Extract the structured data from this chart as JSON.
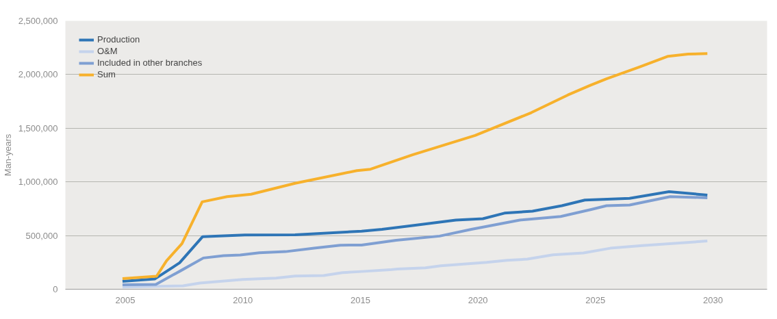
{
  "chart_data": {
    "type": "line",
    "ylabel": "Man-years",
    "xlim": [
      2002.45,
      2032.3
    ],
    "ylim": [
      0,
      2500000
    ],
    "xticks": [
      2005,
      2010,
      2015,
      2020,
      2025,
      2030
    ],
    "yticks": [
      {
        "value": 0,
        "label": "0"
      },
      {
        "value": 500000,
        "label": "500,000"
      },
      {
        "value": 1000000,
        "label": "1,000,000"
      },
      {
        "value": 1500000,
        "label": "1,500,000"
      },
      {
        "value": 2000000,
        "label": "2,000,000"
      },
      {
        "value": 2500000,
        "label": "2,500,000"
      }
    ],
    "grid": "y",
    "legend": "top left",
    "marker": "none",
    "line_style": "solid",
    "series": [
      {
        "name": "Production",
        "color": "#2e75b6",
        "x": [
          2004.88,
          2006.25,
          2007.31,
          2008.29,
          2010.09,
          2012.22,
          2015.05,
          2015.92,
          2017.22,
          2019.06,
          2020.21,
          2021.13,
          2022.32,
          2023.57,
          2024.55,
          2026.45,
          2028.13,
          2029.76
        ],
        "values": [
          73000,
          95000,
          246000,
          490000,
          505000,
          507000,
          541000,
          558000,
          593000,
          644000,
          657000,
          709000,
          727000,
          778000,
          831000,
          847000,
          909000,
          877000
        ]
      },
      {
        "name": "O&M",
        "color": "#c5d3ec",
        "x": [
          2004.88,
          2007.46,
          2008.17,
          2009.99,
          2011.41,
          2012.22,
          2013.44,
          2014.24,
          2015.05,
          2016.25,
          2016.57,
          2017.77,
          2018.42,
          2020.37,
          2021.24,
          2022.1,
          2023.19,
          2024.49,
          2025.63,
          2026.99,
          2029.76
        ],
        "values": [
          21000,
          32000,
          58000,
          91000,
          104000,
          123000,
          128000,
          155000,
          165000,
          181000,
          188000,
          199000,
          218000,
          250000,
          269000,
          280000,
          320000,
          338000,
          382000,
          407000,
          449000
        ]
      },
      {
        "name": "Included in other branches",
        "color": "#7f9fd2",
        "x": [
          2004.88,
          2006.3,
          2007.36,
          2008.32,
          2009.18,
          2009.89,
          2010.7,
          2011.81,
          2013.03,
          2014.14,
          2015.05,
          2016.52,
          2018.37,
          2019.72,
          2021.78,
          2023.52,
          2024.82,
          2025.47,
          2026.45,
          2028.18,
          2029.76
        ],
        "values": [
          41000,
          45000,
          173000,
          291000,
          313000,
          319000,
          339000,
          350000,
          382000,
          410000,
          412000,
          456000,
          495000,
          558000,
          644000,
          678000,
          743000,
          778000,
          784000,
          863000,
          852000
        ]
      },
      {
        "name": "Sum",
        "color": "#f7b12c",
        "x": [
          2004.88,
          2006.33,
          2006.75,
          2007.41,
          2008.27,
          2009.33,
          2010.35,
          2012.22,
          2014.85,
          2015.43,
          2017.22,
          2019.88,
          2022.27,
          2023.83,
          2024.78,
          2025.47,
          2026.87,
          2028.09,
          2028.94,
          2029.76
        ],
        "values": [
          99000,
          121000,
          264000,
          425000,
          814000,
          863000,
          885000,
          987000,
          1105000,
          1118000,
          1252000,
          1432000,
          1645000,
          1810000,
          1900000,
          1960000,
          2070000,
          2170000,
          2190000,
          2195000
        ]
      }
    ]
  }
}
